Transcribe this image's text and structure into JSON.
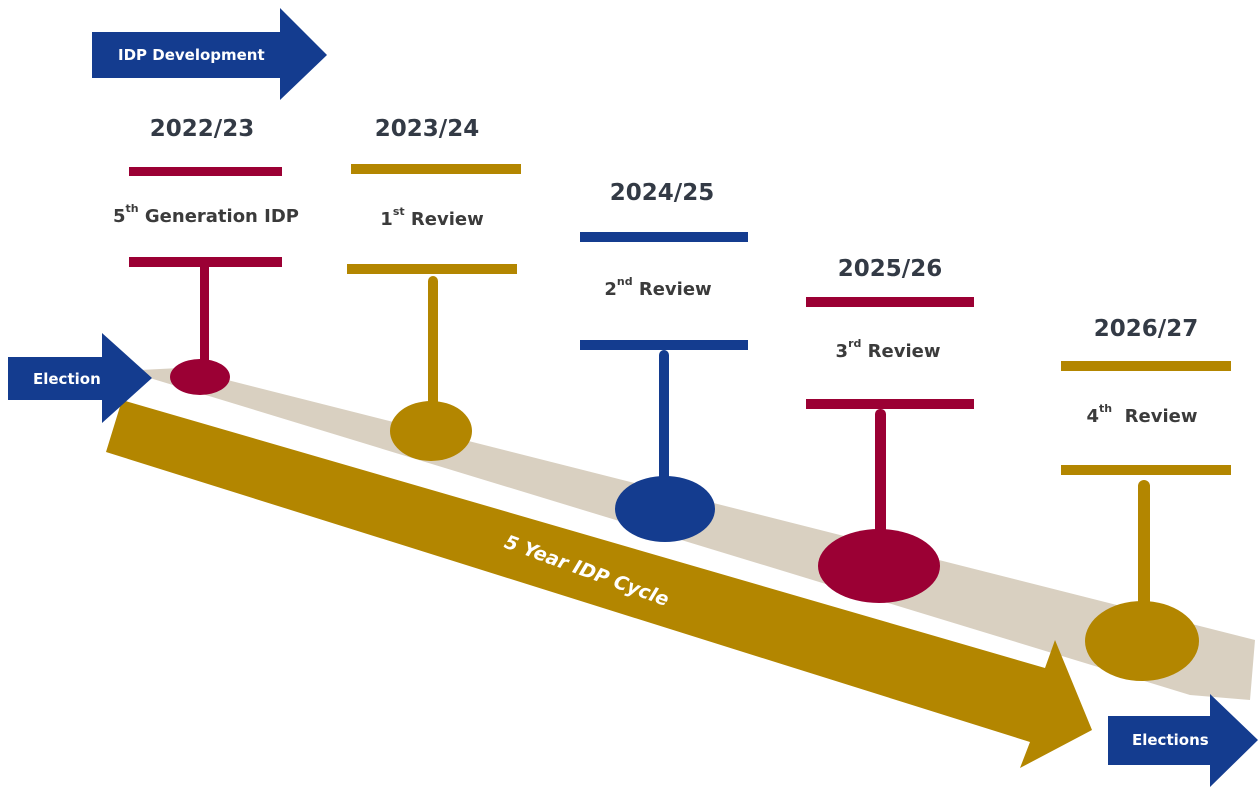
{
  "header_arrow": {
    "label": "IDP Development"
  },
  "start_arrow": {
    "label": "Election"
  },
  "end_arrow": {
    "label": "Elections"
  },
  "cycle_arrow": {
    "label": "5 Year IDP Cycle"
  },
  "stages": [
    {
      "year": "2022/23",
      "ordinal": "5",
      "suffix": "th",
      "text": " Generation IDP",
      "color": "#9b0034"
    },
    {
      "year": "2023/24",
      "ordinal": "1",
      "suffix": "st",
      "text": " Review",
      "color": "#b38600"
    },
    {
      "year": "2024/25",
      "ordinal": "2",
      "suffix": "nd",
      "text": " Review",
      "color": "#143c8f"
    },
    {
      "year": "2025/26",
      "ordinal": "3",
      "suffix": "rd",
      "text": " Review",
      "color": "#9b0034"
    },
    {
      "year": "2026/27",
      "ordinal": "4",
      "suffix": "th",
      "text": "  Review",
      "color": "#b38600"
    }
  ],
  "colors": {
    "navy": "#143c8f",
    "gold": "#b38600",
    "maroon": "#9b0034",
    "timeline_band": "#d9d0c1"
  }
}
